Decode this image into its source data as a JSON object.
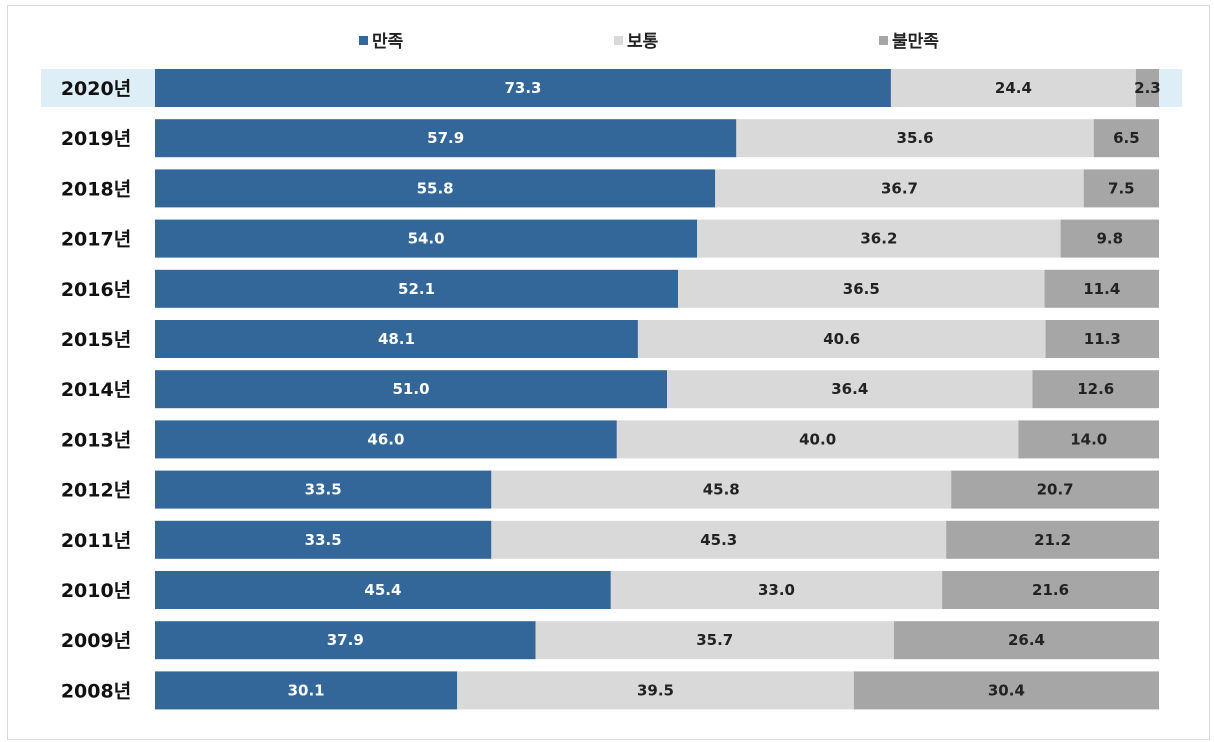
{
  "chart_data": {
    "type": "bar",
    "orientation": "horizontal",
    "stacked": true,
    "percent_stacked": true,
    "title": "",
    "xlabel": "",
    "ylabel": "",
    "legend_position": "top",
    "highlight_category": "2020년",
    "categories": [
      "2020년",
      "2019년",
      "2018년",
      "2017년",
      "2016년",
      "2015년",
      "2014년",
      "2013년",
      "2012년",
      "2011년",
      "2010년",
      "2009년",
      "2008년"
    ],
    "series": [
      {
        "name": "만족",
        "color": "#336699",
        "label_color": "#ffffff",
        "values": [
          73.3,
          57.9,
          55.8,
          54.0,
          52.1,
          48.1,
          51.0,
          46.0,
          33.5,
          33.5,
          45.4,
          37.9,
          30.1
        ]
      },
      {
        "name": "보통",
        "color": "#d9d9d9",
        "label_color": "#222222",
        "values": [
          24.4,
          35.6,
          36.7,
          36.2,
          36.5,
          40.6,
          36.4,
          40.0,
          45.8,
          45.3,
          33.0,
          35.7,
          39.5
        ]
      },
      {
        "name": "불만족",
        "color": "#a6a6a6",
        "label_color": "#222222",
        "values": [
          2.3,
          6.5,
          7.5,
          9.8,
          11.4,
          11.3,
          12.6,
          14.0,
          20.7,
          21.2,
          21.6,
          26.4,
          30.4
        ]
      }
    ],
    "highlight_color": "#ddeef6"
  }
}
